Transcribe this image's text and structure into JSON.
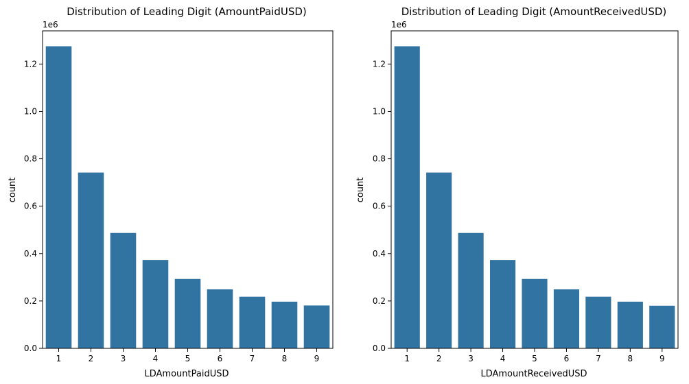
{
  "colors": {
    "bar": "#3274a1",
    "axis": "#000000",
    "background": "#ffffff"
  },
  "chart_data": [
    {
      "type": "bar",
      "title": "Distribution of Leading Digit (AmountPaidUSD)",
      "xlabel": "LDAmountPaidUSD",
      "ylabel": "count",
      "offset_text": "1e6",
      "categories": [
        "1",
        "2",
        "3",
        "4",
        "5",
        "6",
        "7",
        "8",
        "9"
      ],
      "values": [
        1275000,
        742000,
        487000,
        373000,
        293000,
        249000,
        218000,
        197000,
        181000
      ],
      "ylim": [
        0,
        1340000
      ],
      "yticks": [
        0,
        200000,
        400000,
        600000,
        800000,
        1000000,
        1200000
      ],
      "ytick_labels": [
        "0.0",
        "0.2",
        "0.4",
        "0.6",
        "0.8",
        "1.0",
        "1.2"
      ],
      "grid": false,
      "legend": "none"
    },
    {
      "type": "bar",
      "title": "Distribution of Leading Digit (AmountReceivedUSD)",
      "xlabel": "LDAmountReceivedUSD",
      "ylabel": "count",
      "offset_text": "1e6",
      "categories": [
        "1",
        "2",
        "3",
        "4",
        "5",
        "6",
        "7",
        "8",
        "9"
      ],
      "values": [
        1275000,
        742000,
        487000,
        373000,
        293000,
        249000,
        218000,
        197000,
        180000
      ],
      "ylim": [
        0,
        1340000
      ],
      "yticks": [
        0,
        200000,
        400000,
        600000,
        800000,
        1000000,
        1200000
      ],
      "ytick_labels": [
        "0.0",
        "0.2",
        "0.4",
        "0.6",
        "0.8",
        "1.0",
        "1.2"
      ],
      "grid": false,
      "legend": "none"
    }
  ]
}
